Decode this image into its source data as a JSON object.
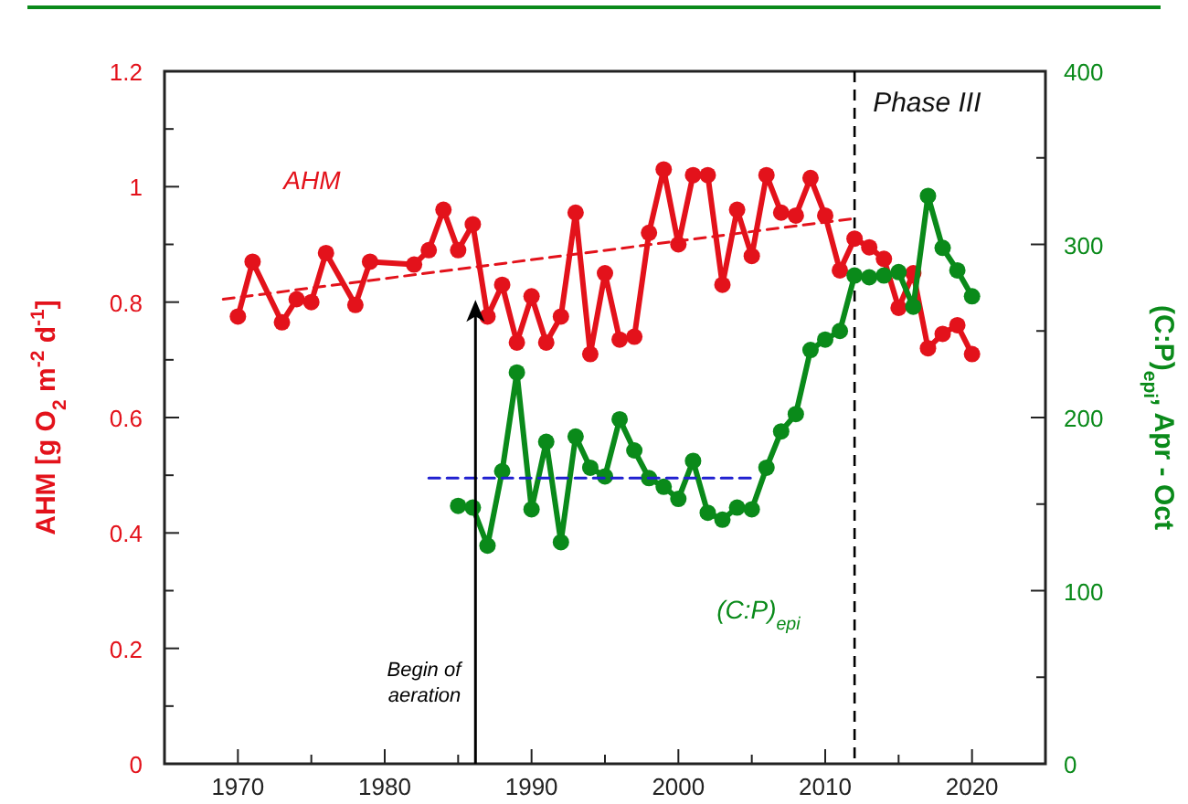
{
  "chart_data": {
    "type": "line",
    "ylabel": "AHM  [g O$_{2}$ m$^{-2}$ d$^{-1}$]",
    "y2label": "(C:P)$_{epi}$, Apr - Oct",
    "xlim": [
      1965,
      2025
    ],
    "xticks": [
      1970,
      {
        "value": 1975,
        "label": null
      },
      1980,
      {
        "value": 1985,
        "label": null
      },
      1990,
      {
        "value": 1995,
        "label": null
      },
      2000,
      {
        "value": 2005,
        "label": null
      },
      2010,
      {
        "value": 2015,
        "label": null
      },
      2020
    ],
    "ylim": [
      0,
      1.2
    ],
    "yticks": [
      0,
      {
        "value": 0.1,
        "label": null
      },
      0.2,
      {
        "value": 0.3,
        "label": null
      },
      0.4,
      {
        "value": 0.5,
        "label": null
      },
      0.6,
      {
        "value": 0.7,
        "label": null
      },
      0.8,
      {
        "value": 0.9,
        "label": null
      },
      1,
      {
        "value": 1.1,
        "label": null
      },
      1.2
    ],
    "y2lim": [
      0,
      400
    ],
    "y2ticks": [
      0,
      {
        "value": 50,
        "label": null
      },
      100,
      {
        "value": 150,
        "label": null
      },
      200,
      {
        "value": 250,
        "label": null
      },
      300,
      {
        "value": 350,
        "label": null
      },
      400
    ],
    "grid": false,
    "series": [
      {
        "name": "AHM",
        "color": "#e3121b",
        "marker": "circle",
        "line_style": "solid",
        "x": [
          1970,
          1971,
          1973,
          1974,
          1975,
          1976,
          1978,
          1979,
          1982,
          1983,
          1984,
          1985,
          1986,
          1987,
          1988,
          1989,
          1990,
          1991,
          1992,
          1993,
          1994,
          1995,
          1996,
          1997,
          1998,
          1999,
          2000,
          2001,
          2002,
          2003,
          2004,
          2005,
          2006,
          2007,
          2008,
          2009,
          2010,
          2011,
          2012,
          2013,
          2014,
          2015,
          2016,
          2017,
          2018,
          2019,
          2020
        ],
        "values": [
          0.775,
          0.87,
          0.765,
          0.805,
          0.8,
          0.885,
          0.795,
          0.87,
          0.865,
          0.89,
          0.96,
          0.89,
          0.935,
          0.775,
          0.83,
          0.73,
          0.81,
          0.73,
          0.775,
          0.955,
          0.71,
          0.85,
          0.735,
          0.74,
          0.92,
          1.03,
          0.9,
          1.02,
          1.02,
          0.83,
          0.96,
          0.88,
          1.02,
          0.955,
          0.95,
          1.015,
          0.95,
          0.855,
          0.91,
          0.895,
          0.875,
          0.79,
          0.85,
          0.72,
          0.745,
          0.76,
          0.71
        ]
      },
      {
        "name": "(C:P)$_{epi}$",
        "color": "#0a8a1a",
        "axis": "y2",
        "marker": "circle",
        "line_style": "solid",
        "x": [
          1985,
          1986,
          1987,
          1988,
          1989,
          1990,
          1991,
          1992,
          1993,
          1994,
          1995,
          1996,
          1997,
          1998,
          1999,
          2000,
          2001,
          2002,
          2003,
          2004,
          2005,
          2006,
          2007,
          2008,
          2009,
          2010,
          2011,
          2012,
          2013,
          2014,
          2015,
          2016,
          2017,
          2018,
          2019,
          2020
        ],
        "values": [
          149,
          148,
          126,
          169,
          226,
          147,
          186,
          128,
          189,
          171,
          166,
          199,
          181,
          165,
          160,
          153,
          175,
          145,
          141,
          148,
          147,
          171,
          192,
          202,
          239,
          245,
          250,
          282,
          281,
          282,
          284,
          264,
          328,
          298,
          285,
          270
        ]
      },
      {
        "color": "#e3121b",
        "marker": "none",
        "line_style": "dashed",
        "x": [
          1969,
          2012
        ],
        "values": [
          0.805,
          0.945
        ]
      },
      {
        "color": "#2020d0",
        "axis": "y2",
        "marker": "none",
        "line_style": "dashed",
        "x": [
          1983,
          2005
        ],
        "values": [
          165,
          165
        ]
      }
    ],
    "ref_lines": [
      {
        "axis": "x",
        "value": 2012,
        "label": "Phase III",
        "color": "#000000",
        "line_style": "dashed"
      }
    ],
    "annotations": [
      "Begin of aeration"
    ]
  }
}
